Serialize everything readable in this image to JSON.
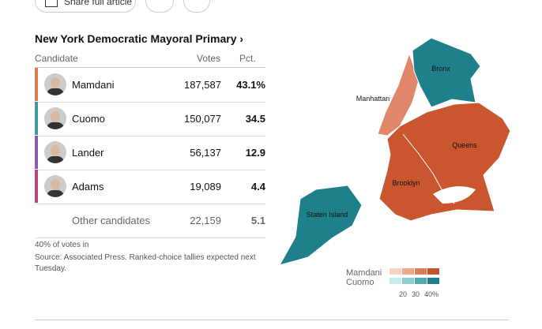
{
  "top_bar": {
    "share": "Share full article"
  },
  "results": {
    "title": "New York Democratic Mayoral Primary ›",
    "headers": [
      "Candidate",
      "Votes",
      "Pct."
    ],
    "rows": [
      {
        "name": "Mamdani",
        "votes": "187,587",
        "pct": "43.1%",
        "color": "#e07a4c"
      },
      {
        "name": "Cuomo",
        "votes": "150,077",
        "pct": "34.5",
        "color": "#3a9a9a"
      },
      {
        "name": "Lander",
        "votes": "56,137",
        "pct": "12.9",
        "color": "#8a5aaa"
      },
      {
        "name": "Adams",
        "votes": "19,089",
        "pct": "4.4",
        "color": "#c0447c"
      }
    ],
    "other": {
      "name": "Other candidates",
      "votes": "22,159",
      "pct": "5.1"
    },
    "footnotes": [
      "40% of votes in",
      "Source: Associated Press. Ranked-choice tallies expected next Tuesday."
    ]
  },
  "map": {
    "labels": [
      "Bronx",
      "Manhattan",
      "Queens",
      "Brooklyn",
      "Staten Island"
    ],
    "legend": {
      "rows": [
        {
          "name": "Mamdani",
          "colors": [
            "#f6d2c3",
            "#eca98c",
            "#dd7e57",
            "#c4532c"
          ]
        },
        {
          "name": "Cuomo",
          "colors": [
            "#c9eaec",
            "#8fcdd1",
            "#4fa9ae",
            "#1f7f8a"
          ]
        }
      ],
      "ticks": [
        "20",
        "30",
        "40%"
      ]
    }
  }
}
